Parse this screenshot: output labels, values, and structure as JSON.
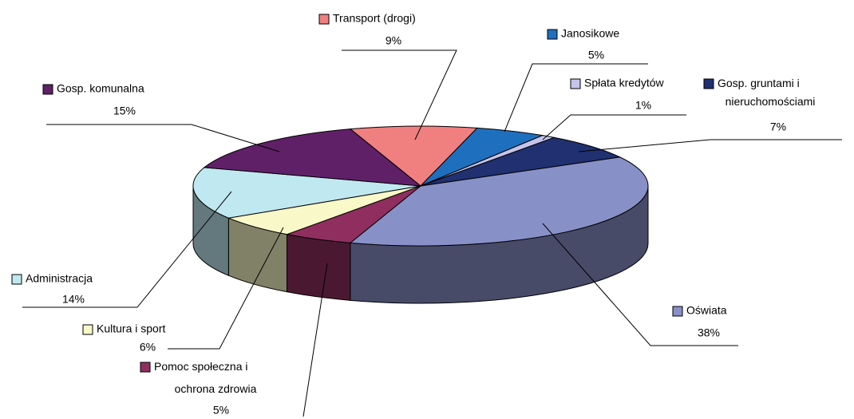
{
  "chart_data": {
    "type": "pie3d",
    "categories": [
      "Transport (drogi)",
      "Janosikowe",
      "Spłata kredytów",
      "Gosp. gruntami i nieruchomościami",
      "Oświata",
      "Pomoc społeczna i ochrona zdrowia",
      "Kultura i sport",
      "Administracja",
      "Gosp. komunalna"
    ],
    "values": [
      9,
      5,
      1,
      7,
      38,
      5,
      6,
      14,
      15
    ],
    "value_labels": [
      "9%",
      "5%",
      "1%",
      "7%",
      "38%",
      "5%",
      "6%",
      "14%",
      "15%"
    ],
    "colors": [
      "#f08080",
      "#1f6fbf",
      "#c4c4ec",
      "#203070",
      "#8890c8",
      "#902e60",
      "#f8f8c8",
      "#c0e8f0",
      "#602068"
    ]
  }
}
